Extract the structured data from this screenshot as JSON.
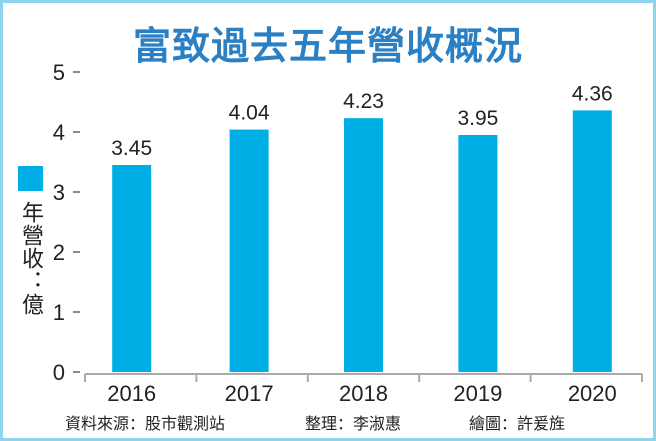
{
  "chart_data": {
    "type": "bar",
    "title": "富致過去五年營收概況",
    "categories": [
      "2016",
      "2017",
      "2018",
      "2019",
      "2020"
    ],
    "values": [
      3.45,
      4.04,
      4.23,
      3.95,
      4.36
    ],
    "data_labels": [
      "3.45",
      "4.04",
      "4.23",
      "3.95",
      "4.36"
    ],
    "ylabel": "年營收：億",
    "legend": "年營收：億",
    "legend_placement": "left",
    "ylim": [
      0,
      5
    ],
    "yticks": [
      "0",
      "1",
      "2",
      "3",
      "4",
      "5"
    ],
    "grid": false,
    "bar_color": "#00aee6",
    "title_color": "#2b7fc3"
  },
  "credits": {
    "source": "資料來源：股市觀測站",
    "editor": "整理：李淑惠",
    "graphic": "繪圖：許爰旌"
  }
}
